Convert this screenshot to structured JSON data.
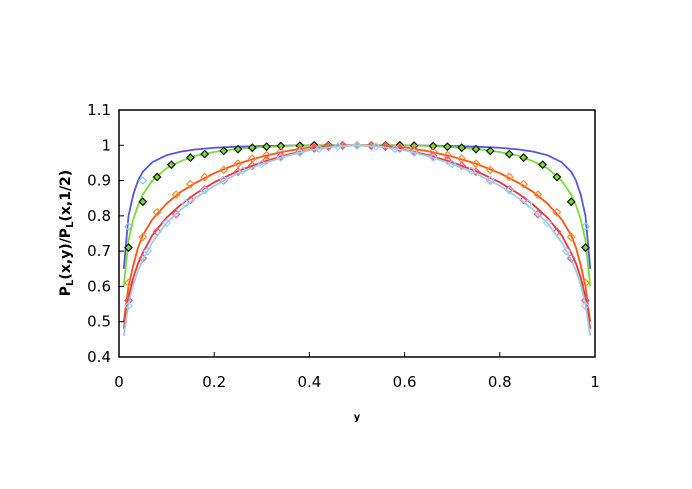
{
  "chart_data": {
    "type": "line",
    "title": "",
    "xlabel": "y",
    "ylabel": "P_L(x,y)/P_L(x,1/2)",
    "xlim": [
      0,
      1
    ],
    "ylim": [
      0.4,
      1.1
    ],
    "xticks": [
      0,
      0.2,
      0.4,
      0.6,
      0.8,
      1
    ],
    "xtick_labels": [
      "0",
      "0.2",
      "0.4",
      "0.6",
      "0.8",
      "1"
    ],
    "yticks": [
      0.4,
      0.5,
      0.6,
      0.7,
      0.8,
      0.9,
      1.0,
      1.1
    ],
    "ytick_labels": [
      "0.4",
      "0.5",
      "0.6",
      "0.7",
      "0.8",
      "0.9",
      "1",
      "1.1"
    ],
    "grid": false,
    "legend": "none",
    "series": [
      {
        "style": "line",
        "color": "#5555dd",
        "x": [
          0.01,
          0.02,
          0.03,
          0.04,
          0.05,
          0.07,
          0.1,
          0.13,
          0.16,
          0.2,
          0.25,
          0.3,
          0.35,
          0.4,
          0.45,
          0.5,
          0.55,
          0.6,
          0.65,
          0.7,
          0.75,
          0.8,
          0.84,
          0.87,
          0.9,
          0.93,
          0.95,
          0.96,
          0.97,
          0.98,
          0.99
        ],
        "y": [
          0.65,
          0.8,
          0.86,
          0.9,
          0.925,
          0.952,
          0.972,
          0.982,
          0.988,
          0.993,
          0.996,
          0.998,
          0.999,
          1.0,
          1.0,
          1.0,
          1.0,
          1.0,
          0.999,
          0.998,
          0.996,
          0.993,
          0.988,
          0.982,
          0.972,
          0.952,
          0.925,
          0.9,
          0.86,
          0.8,
          0.65
        ]
      },
      {
        "style": "markers",
        "marker": "diamond",
        "color": "#88ccee",
        "x": [
          0.02,
          0.05,
          0.98
        ],
        "y": [
          0.77,
          0.9,
          0.77
        ]
      },
      {
        "style": "line",
        "color": "#77dd33",
        "x": [
          0.01,
          0.02,
          0.03,
          0.04,
          0.05,
          0.07,
          0.1,
          0.13,
          0.16,
          0.2,
          0.25,
          0.3,
          0.35,
          0.4,
          0.45,
          0.5,
          0.55,
          0.6,
          0.65,
          0.7,
          0.75,
          0.8,
          0.84,
          0.87,
          0.9,
          0.93,
          0.95,
          0.96,
          0.97,
          0.98,
          0.99
        ],
        "y": [
          0.6,
          0.73,
          0.79,
          0.83,
          0.86,
          0.9,
          0.935,
          0.955,
          0.97,
          0.981,
          0.99,
          0.995,
          0.998,
          1.0,
          1.0,
          1.0,
          1.0,
          1.0,
          0.998,
          0.995,
          0.99,
          0.981,
          0.97,
          0.955,
          0.935,
          0.9,
          0.86,
          0.83,
          0.79,
          0.73,
          0.6
        ]
      },
      {
        "style": "markers",
        "marker": "diamond",
        "color": "#111111",
        "fill": "#77dd33",
        "x": [
          0.02,
          0.05,
          0.08,
          0.11,
          0.15,
          0.18,
          0.22,
          0.25,
          0.28,
          0.31,
          0.34,
          0.38,
          0.41,
          0.44,
          0.47,
          0.5,
          0.53,
          0.56,
          0.59,
          0.62,
          0.66,
          0.69,
          0.72,
          0.75,
          0.78,
          0.82,
          0.85,
          0.89,
          0.92,
          0.95,
          0.98
        ],
        "y": [
          0.71,
          0.84,
          0.91,
          0.945,
          0.965,
          0.975,
          0.984,
          0.989,
          0.993,
          0.996,
          0.998,
          0.999,
          1.0,
          1.0,
          1.0,
          1.0,
          1.0,
          1.0,
          1.0,
          0.999,
          0.998,
          0.996,
          0.993,
          0.989,
          0.984,
          0.975,
          0.965,
          0.945,
          0.91,
          0.84,
          0.71
        ]
      },
      {
        "style": "line",
        "color": "#ff5511",
        "x": [
          0.01,
          0.02,
          0.03,
          0.04,
          0.05,
          0.07,
          0.1,
          0.13,
          0.16,
          0.2,
          0.25,
          0.3,
          0.35,
          0.4,
          0.45,
          0.5,
          0.55,
          0.6,
          0.65,
          0.7,
          0.75,
          0.8,
          0.84,
          0.87,
          0.9,
          0.93,
          0.95,
          0.96,
          0.97,
          0.98,
          0.99
        ],
        "y": [
          0.5,
          0.6,
          0.66,
          0.71,
          0.745,
          0.79,
          0.835,
          0.868,
          0.893,
          0.921,
          0.948,
          0.968,
          0.983,
          0.994,
          0.999,
          1.0,
          0.999,
          0.994,
          0.983,
          0.968,
          0.948,
          0.921,
          0.893,
          0.868,
          0.835,
          0.79,
          0.745,
          0.71,
          0.66,
          0.6,
          0.5
        ]
      },
      {
        "style": "markers",
        "marker": "diamond",
        "color": "#ff8833",
        "x": [
          0.02,
          0.05,
          0.08,
          0.12,
          0.15,
          0.18,
          0.22,
          0.25,
          0.28,
          0.31,
          0.34,
          0.38,
          0.41,
          0.44,
          0.47,
          0.5,
          0.53,
          0.56,
          0.59,
          0.62,
          0.66,
          0.69,
          0.72,
          0.75,
          0.78,
          0.82,
          0.85,
          0.88,
          0.92,
          0.95,
          0.98
        ],
        "y": [
          0.61,
          0.74,
          0.81,
          0.86,
          0.89,
          0.91,
          0.93,
          0.948,
          0.962,
          0.972,
          0.982,
          0.99,
          0.995,
          0.998,
          1.0,
          1.0,
          1.0,
          0.998,
          0.995,
          0.99,
          0.982,
          0.972,
          0.962,
          0.948,
          0.93,
          0.91,
          0.89,
          0.86,
          0.81,
          0.74,
          0.61
        ]
      },
      {
        "style": "line",
        "color": "#ee3333",
        "x": [
          0.01,
          0.02,
          0.03,
          0.04,
          0.05,
          0.07,
          0.1,
          0.13,
          0.16,
          0.2,
          0.25,
          0.3,
          0.35,
          0.4,
          0.45,
          0.5,
          0.55,
          0.6,
          0.65,
          0.7,
          0.75,
          0.8,
          0.84,
          0.87,
          0.9,
          0.93,
          0.95,
          0.96,
          0.97,
          0.98,
          0.99
        ],
        "y": [
          0.48,
          0.57,
          0.625,
          0.665,
          0.695,
          0.745,
          0.795,
          0.832,
          0.862,
          0.895,
          0.927,
          0.952,
          0.972,
          0.987,
          0.997,
          1.0,
          0.997,
          0.987,
          0.972,
          0.952,
          0.927,
          0.895,
          0.862,
          0.832,
          0.795,
          0.745,
          0.695,
          0.665,
          0.625,
          0.57,
          0.48
        ]
      },
      {
        "style": "markers",
        "marker": "diamond",
        "color": "#ee5577",
        "x": [
          0.02,
          0.05,
          0.08,
          0.12,
          0.15,
          0.18,
          0.22,
          0.25,
          0.28,
          0.31,
          0.34,
          0.38,
          0.41,
          0.44,
          0.47,
          0.5,
          0.53,
          0.56,
          0.59,
          0.62,
          0.66,
          0.69,
          0.72,
          0.75,
          0.78,
          0.82,
          0.85,
          0.88,
          0.92,
          0.95,
          0.98
        ],
        "y": [
          0.56,
          0.68,
          0.755,
          0.805,
          0.845,
          0.875,
          0.9,
          0.925,
          0.942,
          0.958,
          0.97,
          0.983,
          0.991,
          0.996,
          0.999,
          1.0,
          0.999,
          0.996,
          0.991,
          0.983,
          0.97,
          0.958,
          0.942,
          0.925,
          0.9,
          0.875,
          0.845,
          0.805,
          0.755,
          0.68,
          0.56
        ]
      },
      {
        "style": "line",
        "color": "#99ccee",
        "x": [
          0.01,
          0.02,
          0.03,
          0.04,
          0.05,
          0.07,
          0.1,
          0.13,
          0.16,
          0.2,
          0.25,
          0.3,
          0.35,
          0.4,
          0.45,
          0.5,
          0.55,
          0.6,
          0.65,
          0.7,
          0.75,
          0.8,
          0.84,
          0.87,
          0.9,
          0.93,
          0.95,
          0.96,
          0.97,
          0.98,
          0.99
        ],
        "y": [
          0.46,
          0.55,
          0.605,
          0.645,
          0.675,
          0.725,
          0.78,
          0.818,
          0.85,
          0.885,
          0.92,
          0.947,
          0.969,
          0.986,
          0.996,
          1.0,
          0.996,
          0.986,
          0.969,
          0.947,
          0.92,
          0.885,
          0.85,
          0.818,
          0.78,
          0.725,
          0.675,
          0.645,
          0.605,
          0.55,
          0.46
        ]
      },
      {
        "style": "markers",
        "marker": "diamond",
        "color": "#aaccee",
        "x": [
          0.02,
          0.06,
          0.1,
          0.14,
          0.18,
          0.22,
          0.26,
          0.3,
          0.34,
          0.38,
          0.42,
          0.46,
          0.5,
          0.54,
          0.58,
          0.62,
          0.66,
          0.7,
          0.74,
          0.78,
          0.82,
          0.86,
          0.9,
          0.94,
          0.98
        ],
        "y": [
          0.545,
          0.7,
          0.78,
          0.835,
          0.872,
          0.902,
          0.928,
          0.947,
          0.965,
          0.979,
          0.99,
          0.997,
          1.0,
          0.997,
          0.99,
          0.979,
          0.965,
          0.947,
          0.928,
          0.902,
          0.872,
          0.835,
          0.78,
          0.7,
          0.545
        ]
      }
    ]
  }
}
